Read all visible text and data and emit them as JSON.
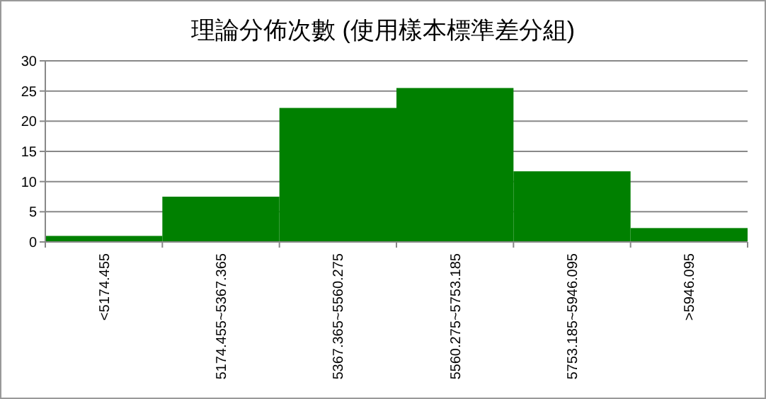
{
  "chart_data": {
    "type": "bar",
    "title": "理論分佈次數 (使用樣本標準差分組)",
    "categories": [
      "<5174.455",
      "5174.455~5367.365",
      "5367.365~5560.275",
      "5560.275~5753.185",
      "5753.185~5946.095",
      ">5946.095"
    ],
    "values": [
      1.0,
      7.5,
      22.2,
      25.5,
      11.7,
      2.3
    ],
    "color": "#008000",
    "ylim": [
      0,
      30
    ],
    "yticks": [
      0,
      5,
      10,
      15,
      20,
      25,
      30
    ],
    "grid": "y"
  }
}
